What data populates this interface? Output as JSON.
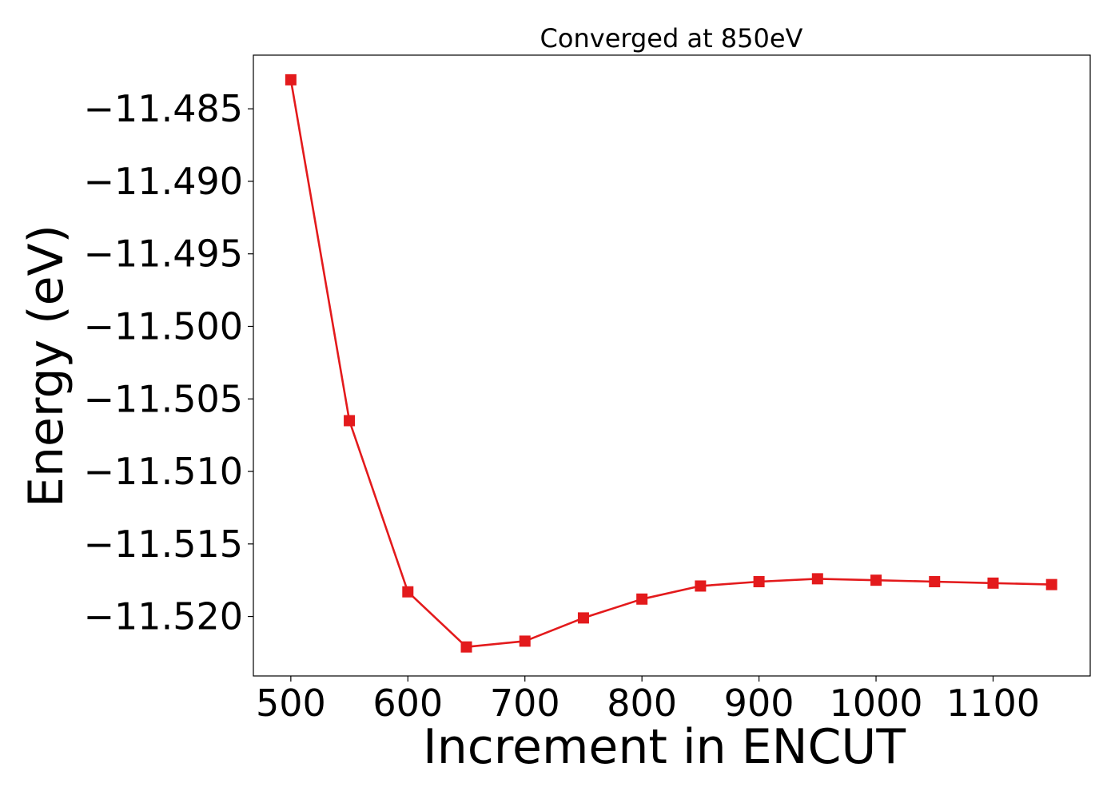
{
  "chart_data": {
    "type": "line",
    "title": "Converged at 850eV",
    "xlabel": "Increment in ENCUT",
    "ylabel": "Energy (eV)",
    "xlim": [
      468,
      1183
    ],
    "ylim": [
      -11.5241,
      -11.4813
    ],
    "x_ticks": [
      500,
      600,
      700,
      800,
      900,
      1000,
      1100
    ],
    "y_ticks": [
      -11.485,
      -11.49,
      -11.495,
      -11.5,
      -11.505,
      -11.51,
      -11.515,
      -11.52
    ],
    "y_tick_labels": [
      "−11.485",
      "−11.490",
      "−11.495",
      "−11.500",
      "−11.505",
      "−11.510",
      "−11.515",
      "−11.520"
    ],
    "grid": false,
    "marker": "square",
    "series": [
      {
        "color": "#e31a1c",
        "x": [
          500,
          550,
          600,
          650,
          700,
          750,
          800,
          850,
          900,
          950,
          1000,
          1050,
          1100,
          1150
        ],
        "y": [
          -11.483,
          -11.5065,
          -11.5183,
          -11.5221,
          -11.5217,
          -11.5201,
          -11.5188,
          -11.5179,
          -11.5176,
          -11.5174,
          -11.5175,
          -11.5176,
          -11.5177,
          -11.5178
        ]
      }
    ]
  }
}
